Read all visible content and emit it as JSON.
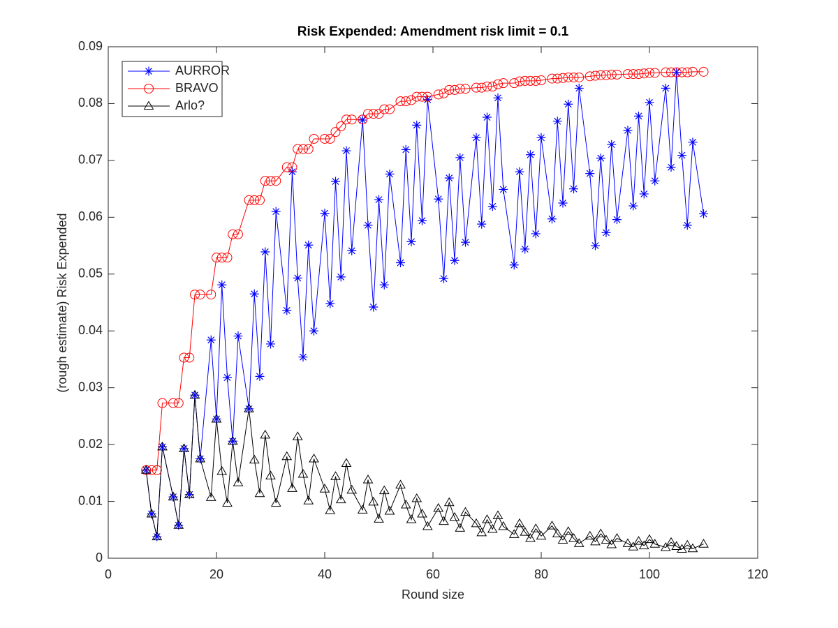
{
  "chart_data": {
    "type": "line",
    "title": "Risk Expended: Amendment risk limit = 0.1",
    "x_label": "Round size",
    "y_label": "(rough estimate) Risk Expended",
    "xlim": [
      0,
      120
    ],
    "xticks": [
      0,
      20,
      40,
      60,
      80,
      100,
      120
    ],
    "ylim": [
      0,
      0.09
    ],
    "yticks": [
      0,
      0.01,
      0.02,
      0.03,
      0.04,
      0.05,
      0.06,
      0.07,
      0.08,
      0.09
    ],
    "legend": "upper-left",
    "x": [
      7,
      8,
      9,
      10,
      12,
      13,
      14,
      15,
      16,
      17,
      19,
      20,
      21,
      22,
      23,
      24,
      26,
      27,
      28,
      29,
      30,
      31,
      33,
      34,
      35,
      36,
      37,
      38,
      40,
      41,
      42,
      43,
      44,
      45,
      47,
      48,
      49,
      50,
      51,
      52,
      54,
      55,
      56,
      57,
      58,
      59,
      61,
      62,
      63,
      64,
      65,
      66,
      68,
      69,
      70,
      71,
      72,
      73,
      75,
      76,
      77,
      78,
      79,
      80,
      82,
      83,
      84,
      85,
      86,
      87,
      89,
      90,
      91,
      92,
      93,
      94,
      96,
      97,
      98,
      99,
      100,
      101,
      103,
      104,
      105,
      106,
      107,
      108,
      110
    ],
    "series": [
      {
        "name": "AURROR",
        "color": "#0000ff",
        "marker": "asterisk",
        "values": [
          0.0155,
          0.0078,
          0.0038,
          0.0196,
          0.0108,
          0.0058,
          0.0193,
          0.0112,
          0.0287,
          0.0175,
          0.0384,
          0.0245,
          0.0481,
          0.0318,
          0.0206,
          0.0391,
          0.0263,
          0.0465,
          0.032,
          0.0539,
          0.0377,
          0.061,
          0.0436,
          0.068,
          0.0493,
          0.0354,
          0.0551,
          0.04,
          0.0607,
          0.0448,
          0.0663,
          0.0495,
          0.0717,
          0.0541,
          0.0771,
          0.0586,
          0.0442,
          0.0631,
          0.0481,
          0.0676,
          0.052,
          0.0719,
          0.0557,
          0.0762,
          0.0594,
          0.0807,
          0.0632,
          0.0492,
          0.0669,
          0.0524,
          0.0705,
          0.0556,
          0.074,
          0.0588,
          0.0776,
          0.0619,
          0.081,
          0.0649,
          0.0516,
          0.068,
          0.0544,
          0.071,
          0.0571,
          0.074,
          0.0597,
          0.0769,
          0.0625,
          0.0799,
          0.065,
          0.0827,
          0.0677,
          0.055,
          0.0704,
          0.0573,
          0.0728,
          0.0596,
          0.0753,
          0.062,
          0.0778,
          0.0641,
          0.0802,
          0.0664,
          0.0827,
          0.0688,
          0.0855,
          0.0709,
          0.0586,
          0.0732,
          0.0606
        ]
      },
      {
        "name": "BRAVO",
        "color": "#ff0000",
        "marker": "circle",
        "values": [
          0.0155,
          0.0155,
          0.0155,
          0.0273,
          0.0273,
          0.0273,
          0.0353,
          0.0353,
          0.0464,
          0.0464,
          0.0464,
          0.0529,
          0.0529,
          0.0529,
          0.057,
          0.057,
          0.063,
          0.063,
          0.063,
          0.0664,
          0.0664,
          0.0664,
          0.0688,
          0.0688,
          0.072,
          0.072,
          0.072,
          0.0738,
          0.0738,
          0.0738,
          0.075,
          0.076,
          0.0772,
          0.0772,
          0.0772,
          0.0782,
          0.0782,
          0.0782,
          0.079,
          0.079,
          0.0804,
          0.0804,
          0.0806,
          0.0812,
          0.0812,
          0.0812,
          0.0816,
          0.0818,
          0.0824,
          0.0824,
          0.0826,
          0.0826,
          0.0828,
          0.0828,
          0.083,
          0.083,
          0.0834,
          0.0836,
          0.0836,
          0.0839,
          0.084,
          0.084,
          0.084,
          0.0841,
          0.0844,
          0.0844,
          0.0845,
          0.0846,
          0.0846,
          0.0846,
          0.0848,
          0.0849,
          0.085,
          0.085,
          0.0851,
          0.0851,
          0.0852,
          0.0852,
          0.0852,
          0.0853,
          0.0854,
          0.0854,
          0.0855,
          0.0855,
          0.0855,
          0.0855,
          0.0855,
          0.0856,
          0.0856
        ]
      },
      {
        "name": "Arlo?",
        "color": "#000000",
        "marker": "triangle",
        "values": [
          0.0155,
          0.0078,
          0.0038,
          0.0196,
          0.0108,
          0.0058,
          0.0193,
          0.0112,
          0.0287,
          0.0175,
          0.0107,
          0.0245,
          0.0153,
          0.0097,
          0.0206,
          0.0133,
          0.0263,
          0.0173,
          0.0114,
          0.0217,
          0.0145,
          0.0097,
          0.0179,
          0.0123,
          0.0214,
          0.0148,
          0.0101,
          0.0175,
          0.0122,
          0.0084,
          0.0144,
          0.0103,
          0.0167,
          0.012,
          0.0085,
          0.0138,
          0.0099,
          0.0069,
          0.0119,
          0.0083,
          0.0129,
          0.0094,
          0.0068,
          0.0105,
          0.0078,
          0.0056,
          0.0088,
          0.0065,
          0.0098,
          0.0072,
          0.0053,
          0.0081,
          0.0061,
          0.0045,
          0.0068,
          0.0051,
          0.0075,
          0.0056,
          0.0042,
          0.0061,
          0.0046,
          0.0035,
          0.0052,
          0.0039,
          0.0057,
          0.0043,
          0.0032,
          0.0047,
          0.0035,
          0.0026,
          0.0039,
          0.0029,
          0.0043,
          0.0032,
          0.0024,
          0.0035,
          0.0026,
          0.002,
          0.003,
          0.0022,
          0.0033,
          0.0025,
          0.0019,
          0.0028,
          0.0021,
          0.0016,
          0.0023,
          0.0017,
          0.0025
        ]
      }
    ]
  }
}
